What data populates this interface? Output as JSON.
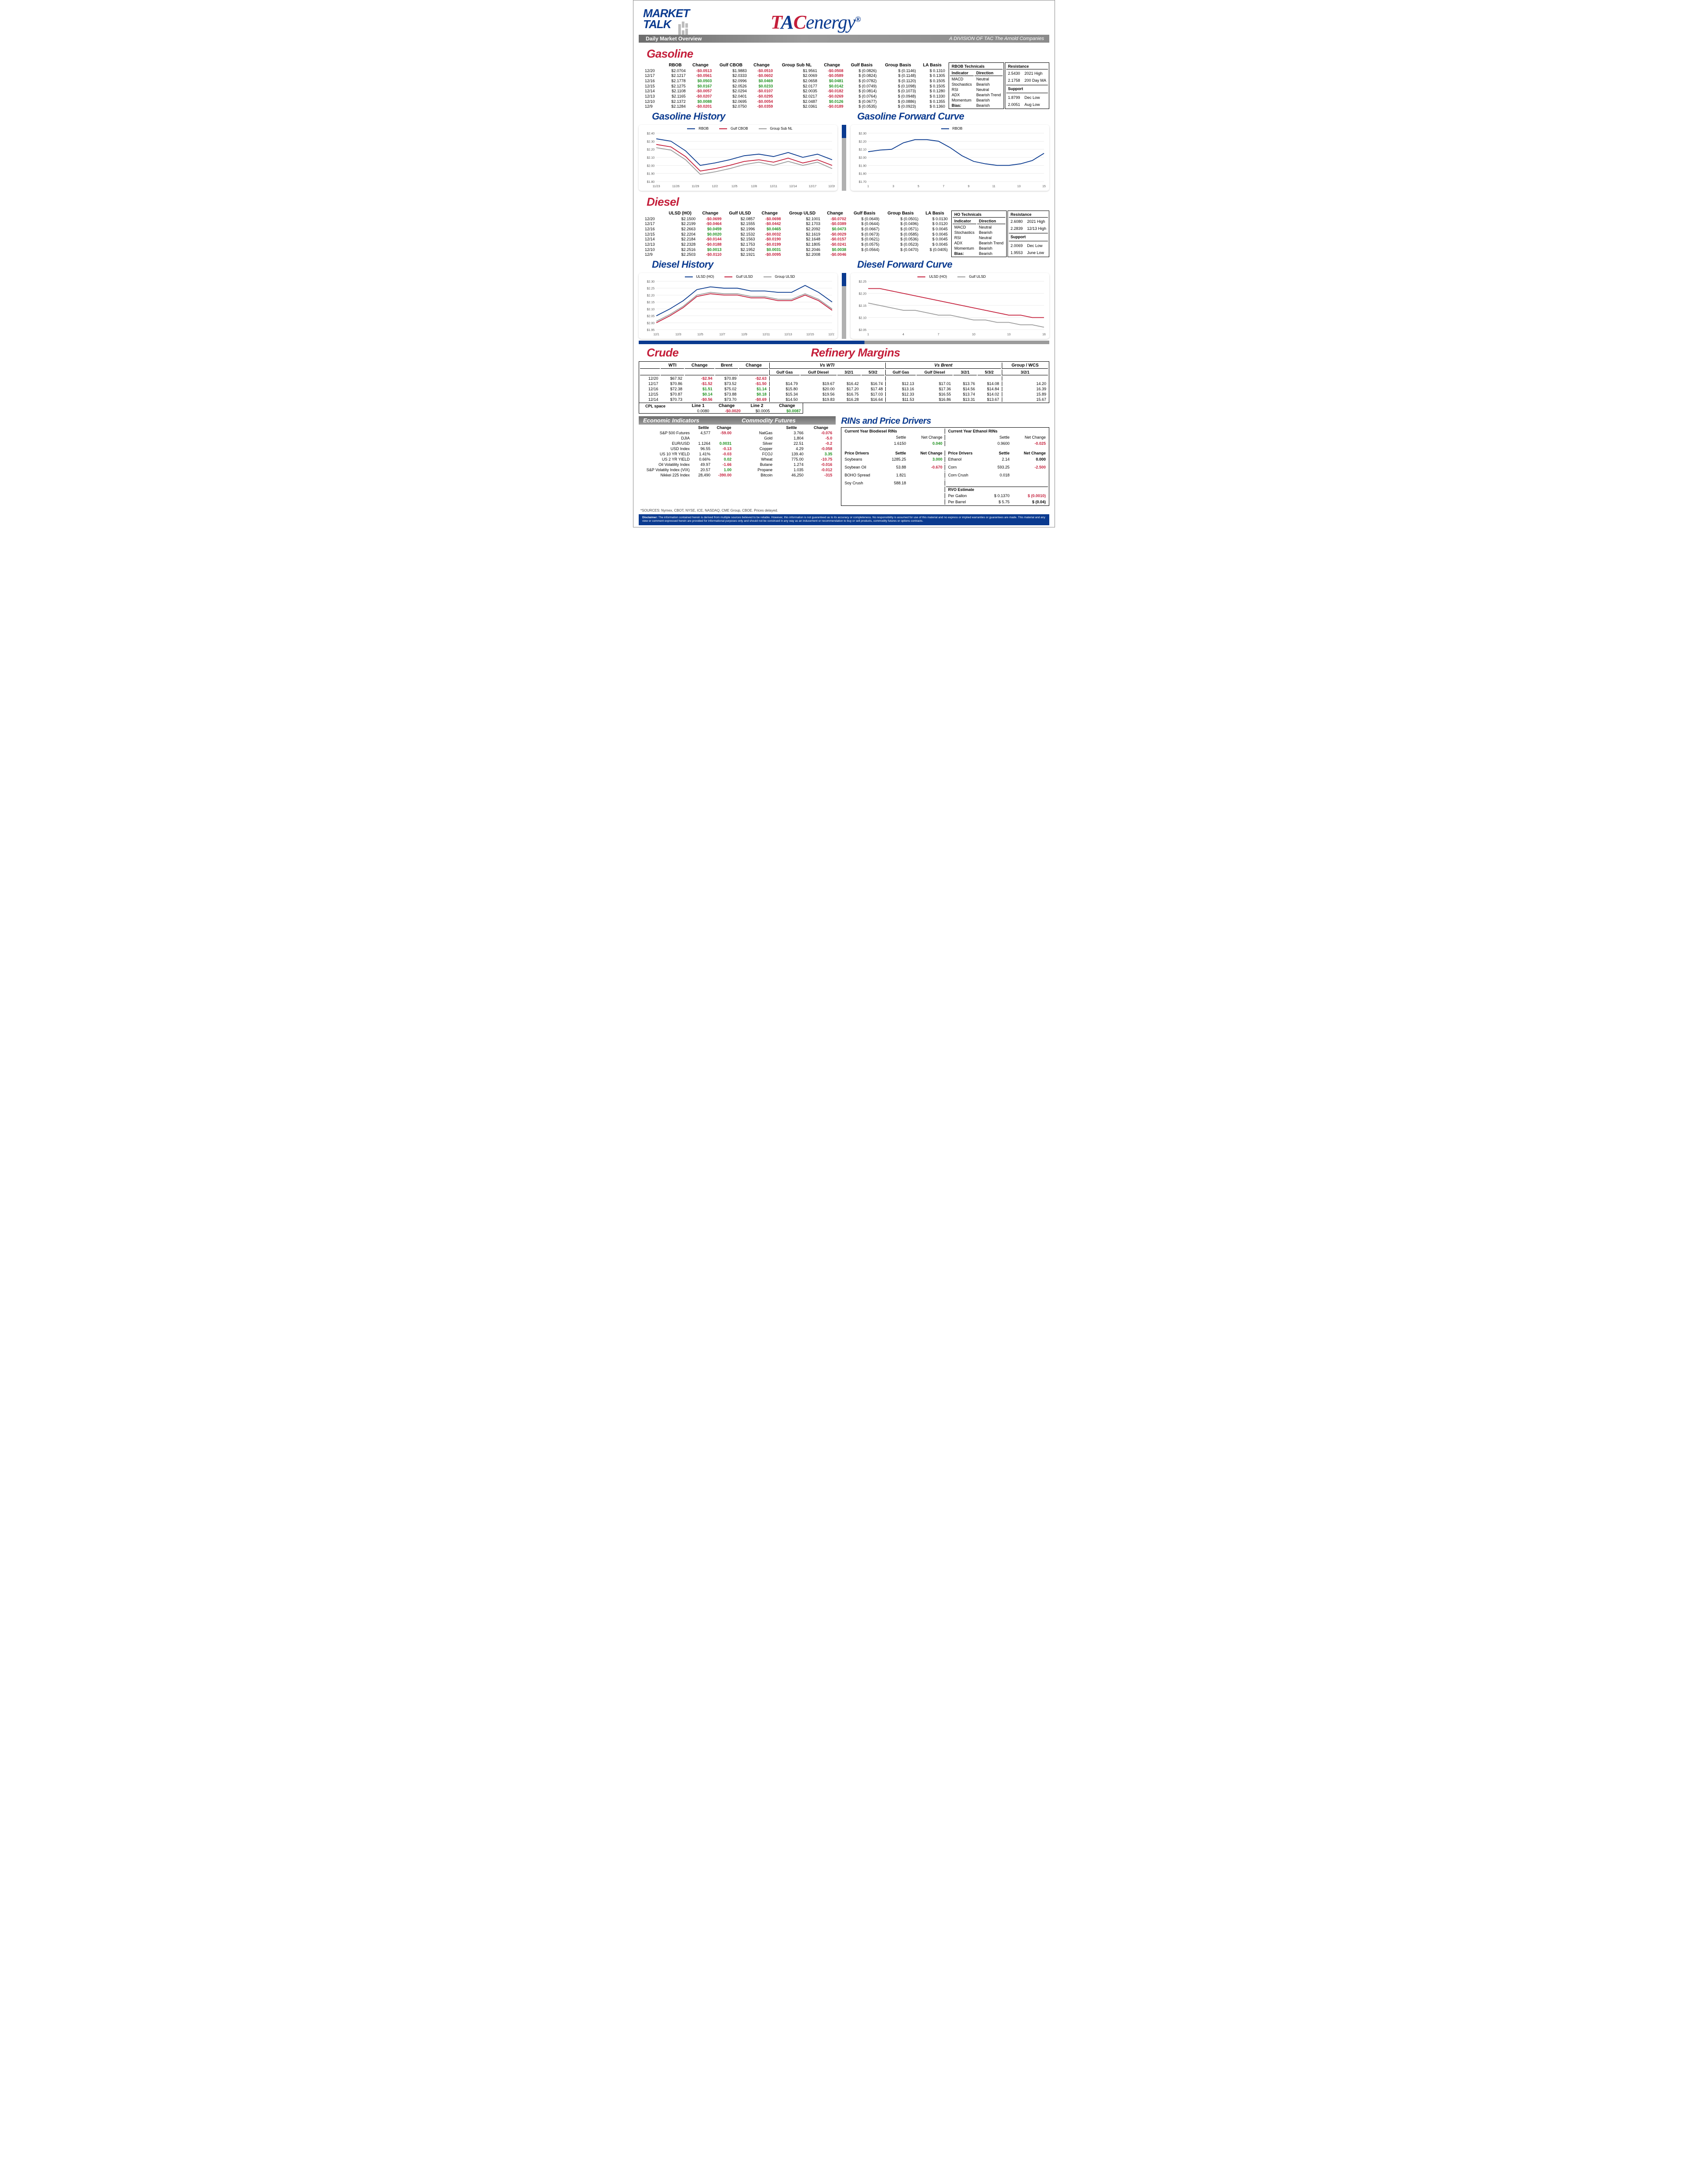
{
  "header": {
    "market": "MARKET",
    "talk": "TALK",
    "daily": "Daily Market Overview",
    "tac_t": "T",
    "tac_a": "A",
    "tac_c": "C",
    "tac_energy": "energy",
    "division": "A DIVISION OF TAC The Arnold Companies"
  },
  "colors": {
    "red": "#c41e3a",
    "blue": "#0a3a8f",
    "green": "#1a8f1a",
    "grey": "#9a9a9a",
    "grid": "#d9d9d9"
  },
  "gasoline": {
    "title": "Gasoline",
    "cols": [
      "RBOB",
      "Change",
      "Gulf CBOB",
      "Change",
      "Group Sub NL",
      "Change",
      "Gulf Basis",
      "Group Basis",
      "LA Basis"
    ],
    "rows": [
      {
        "date": "12/20",
        "v": [
          "$2.0704",
          "-$0.0513",
          "$1.9883",
          "-$0.0510",
          "$1.9561",
          "-$0.0508",
          "$ (0.0826)",
          "$    (0.1146)",
          "$   0.1310"
        ]
      },
      {
        "date": "12/17",
        "v": [
          "$2.1217",
          "-$0.0561",
          "$2.0333",
          "-$0.0602",
          "$2.0069",
          "-$0.0589",
          "$ (0.0824)",
          "$    (0.1148)",
          "$   0.1305"
        ]
      },
      {
        "date": "12/16",
        "v": [
          "$2.1778",
          "$0.0503",
          "$2.0996",
          "$0.0469",
          "$2.0658",
          "$0.0481",
          "$ (0.0782)",
          "$    (0.1120)",
          "$   0.1505"
        ]
      },
      {
        "date": "12/15",
        "v": [
          "$2.1275",
          "$0.0167",
          "$2.0526",
          "$0.0233",
          "$2.0177",
          "$0.0142",
          "$ (0.0749)",
          "$    (0.1098)",
          "$   0.1505"
        ]
      },
      {
        "date": "12/14",
        "v": [
          "$2.1108",
          "-$0.0057",
          "$2.0294",
          "-$0.0107",
          "$2.0035",
          "-$0.0182",
          "$ (0.0814)",
          "$    (0.1073)",
          "$   0.1280"
        ]
      },
      {
        "date": "12/13",
        "v": [
          "$2.1165",
          "-$0.0207",
          "$2.0401",
          "-$0.0295",
          "$2.0217",
          "-$0.0269",
          "$ (0.0764)",
          "$    (0.0948)",
          "$   0.1330"
        ]
      },
      {
        "date": "12/10",
        "v": [
          "$2.1372",
          "$0.0088",
          "$2.0695",
          "-$0.0054",
          "$2.0487",
          "$0.0126",
          "$ (0.0677)",
          "$    (0.0886)",
          "$   0.1355"
        ]
      },
      {
        "date": "12/9",
        "v": [
          "$2.1284",
          "-$0.0201",
          "$2.0750",
          "-$0.0359",
          "$2.0361",
          "-$0.0189",
          "$ (0.0535)",
          "$    (0.0923)",
          "$   0.1360"
        ]
      }
    ],
    "changeColors": [
      [
        "neg",
        "neg",
        "neg"
      ],
      [
        "neg",
        "neg",
        "neg"
      ],
      [
        "pos",
        "pos",
        "pos"
      ],
      [
        "pos",
        "pos",
        "pos"
      ],
      [
        "neg",
        "neg",
        "neg"
      ],
      [
        "neg",
        "neg",
        "neg"
      ],
      [
        "pos",
        "neg",
        "pos"
      ],
      [
        "neg",
        "neg",
        "neg"
      ]
    ],
    "tech": {
      "title": "RBOB Technicals",
      "cols": [
        "Indicator",
        "Direction"
      ],
      "rows": [
        [
          "MACD",
          "Neutral"
        ],
        [
          "Stochastics",
          "Bearish"
        ],
        [
          "RSI",
          "Neutral"
        ],
        [
          "ADX",
          "Bearish Trend"
        ],
        [
          "Momentum",
          "Bearish"
        ],
        [
          "Bias:",
          "Bearish"
        ]
      ]
    },
    "res": {
      "title": "Resistance",
      "rows": [
        [
          "2.5430",
          "2021 High"
        ],
        [
          "2.1758",
          "200 Day MA"
        ],
        [
          "1.8799",
          "Dec Low"
        ],
        [
          "2.0051",
          "Aug Low"
        ]
      ],
      "support": "Support"
    },
    "history": {
      "title": "Gasoline History",
      "legend": [
        "RBOB",
        "Gulf CBOB",
        "Group Sub NL"
      ],
      "legendColors": [
        "#0a3a8f",
        "#c41e3a",
        "#9a9a9a"
      ],
      "ylim": [
        1.8,
        2.4
      ],
      "yticks": [
        1.8,
        1.9,
        2.0,
        2.1,
        2.2,
        2.3,
        2.4
      ],
      "xlabels": [
        "11/23",
        "11/26",
        "11/29",
        "12/2",
        "12/5",
        "12/8",
        "12/11",
        "12/14",
        "12/17",
        "12/20"
      ],
      "series": [
        {
          "color": "#0a3a8f",
          "y": [
            2.33,
            2.3,
            2.18,
            2.0,
            2.03,
            2.07,
            2.12,
            2.14,
            2.11,
            2.16,
            2.1,
            2.14,
            2.07
          ]
        },
        {
          "color": "#c41e3a",
          "y": [
            2.26,
            2.23,
            2.11,
            1.93,
            1.96,
            2.0,
            2.05,
            2.07,
            2.04,
            2.09,
            2.03,
            2.07,
            2.0
          ]
        },
        {
          "color": "#9a9a9a",
          "y": [
            2.22,
            2.19,
            2.07,
            1.89,
            1.92,
            1.96,
            2.01,
            2.04,
            2.0,
            2.05,
            2.0,
            2.04,
            1.96
          ]
        }
      ]
    },
    "forward": {
      "title": "Gasoline Forward Curve",
      "legend": [
        "RBOB"
      ],
      "legendColors": [
        "#0a3a8f"
      ],
      "ylim": [
        1.7,
        2.3
      ],
      "yticks": [
        1.7,
        1.8,
        1.9,
        2.0,
        2.1,
        2.2,
        2.3
      ],
      "xlabels": [
        "1",
        "3",
        "5",
        "7",
        "9",
        "11",
        "13",
        "15"
      ],
      "series": [
        {
          "color": "#0a3a8f",
          "y": [
            2.07,
            2.09,
            2.1,
            2.18,
            2.22,
            2.22,
            2.2,
            2.12,
            2.02,
            1.95,
            1.92,
            1.9,
            1.9,
            1.92,
            1.96,
            2.05
          ]
        }
      ]
    }
  },
  "diesel": {
    "title": "Diesel",
    "cols": [
      "ULSD (HO)",
      "Change",
      "Gulf ULSD",
      "Change",
      "Group ULSD",
      "Change",
      "Gulf Basis",
      "Group Basis",
      "LA Basis"
    ],
    "rows": [
      {
        "date": "12/20",
        "v": [
          "$2.1500",
          "-$0.0699",
          "$2.0857",
          "-$0.0698",
          "$2.1001",
          "-$0.0702",
          "$ (0.0649)",
          "$    (0.0501)",
          "$   0.0130"
        ]
      },
      {
        "date": "12/17",
        "v": [
          "$2.2199",
          "-$0.0464",
          "$2.1555",
          "-$0.0442",
          "$2.1703",
          "-$0.0389",
          "$ (0.0644)",
          "$    (0.0496)",
          "$   0.0120"
        ]
      },
      {
        "date": "12/16",
        "v": [
          "$2.2663",
          "$0.0459",
          "$2.1996",
          "$0.0465",
          "$2.2092",
          "$0.0473",
          "$ (0.0667)",
          "$    (0.0571)",
          "$   0.0045"
        ]
      },
      {
        "date": "12/15",
        "v": [
          "$2.2204",
          "$0.0020",
          "$2.1532",
          "-$0.0032",
          "$2.1619",
          "-$0.0029",
          "$ (0.0673)",
          "$    (0.0585)",
          "$   0.0045"
        ]
      },
      {
        "date": "12/14",
        "v": [
          "$2.2184",
          "-$0.0144",
          "$2.1563",
          "-$0.0190",
          "$2.1648",
          "-$0.0157",
          "$ (0.0621)",
          "$    (0.0536)",
          "$   0.0045"
        ]
      },
      {
        "date": "12/13",
        "v": [
          "$2.2328",
          "-$0.0188",
          "$2.1753",
          "-$0.0199",
          "$2.1805",
          "-$0.0241",
          "$ (0.0575)",
          "$    (0.0523)",
          "$   0.0045"
        ]
      },
      {
        "date": "12/10",
        "v": [
          "$2.2516",
          "$0.0013",
          "$2.1952",
          "$0.0031",
          "$2.2046",
          "$0.0038",
          "$ (0.0564)",
          "$    (0.0470)",
          "$  (0.0405)"
        ]
      },
      {
        "date": "12/9",
        "v": [
          "$2.2503",
          "-$0.0110",
          "$2.1921",
          "-$0.0095",
          "$2.2008",
          "-$0.0046",
          "",
          "",
          ""
        ]
      }
    ],
    "changeColors": [
      [
        "neg",
        "neg",
        "neg"
      ],
      [
        "neg",
        "neg",
        "neg"
      ],
      [
        "pos",
        "pos",
        "pos"
      ],
      [
        "pos",
        "neg",
        "neg"
      ],
      [
        "neg",
        "neg",
        "neg"
      ],
      [
        "neg",
        "neg",
        "neg"
      ],
      [
        "pos",
        "pos",
        "pos"
      ],
      [
        "neg",
        "neg",
        "neg"
      ]
    ],
    "tech": {
      "title": "HO Technicals",
      "cols": [
        "Indicator",
        "Direction"
      ],
      "rows": [
        [
          "MACD",
          "Neutral"
        ],
        [
          "Stochastics",
          "Bearish"
        ],
        [
          "RSI",
          "Neutral"
        ],
        [
          "ADX",
          "Bearish Trend"
        ],
        [
          "Momentum",
          "Bearish"
        ],
        [
          "Bias:",
          "Bearish"
        ]
      ]
    },
    "res": {
      "title": "Resistance",
      "rows": [
        [
          "2.6080",
          "2021 High"
        ],
        [
          "2.2839",
          "12/13 High"
        ],
        [
          "2.0069",
          "Dec Low"
        ],
        [
          "1.9553",
          "June Low"
        ]
      ],
      "support": "Support"
    },
    "history": {
      "title": "Diesel History",
      "legend": [
        "ULSD (HO)",
        "Gulf ULSD",
        "Group ULSD"
      ],
      "legendColors": [
        "#0a3a8f",
        "#c41e3a",
        "#9a9a9a"
      ],
      "ylim": [
        1.95,
        2.3
      ],
      "yticks": [
        1.95,
        2.0,
        2.05,
        2.1,
        2.15,
        2.2,
        2.25,
        2.3
      ],
      "xlabels": [
        "12/1",
        "12/3",
        "12/5",
        "12/7",
        "12/9",
        "12/11",
        "12/13",
        "12/15",
        "12/17"
      ],
      "series": [
        {
          "color": "#0a3a8f",
          "y": [
            2.05,
            2.1,
            2.16,
            2.24,
            2.26,
            2.25,
            2.25,
            2.23,
            2.23,
            2.22,
            2.22,
            2.27,
            2.22,
            2.15
          ]
        },
        {
          "color": "#c41e3a",
          "y": [
            2.0,
            2.05,
            2.11,
            2.19,
            2.21,
            2.2,
            2.2,
            2.18,
            2.18,
            2.16,
            2.16,
            2.2,
            2.16,
            2.09
          ]
        },
        {
          "color": "#9a9a9a",
          "y": [
            2.01,
            2.06,
            2.12,
            2.2,
            2.22,
            2.21,
            2.21,
            2.19,
            2.19,
            2.17,
            2.17,
            2.21,
            2.17,
            2.1
          ]
        }
      ]
    },
    "forward": {
      "title": "Diesel Forward Curve",
      "legend": [
        "ULSD (HO)",
        "Gulf ULSD"
      ],
      "legendColors": [
        "#c41e3a",
        "#9a9a9a"
      ],
      "ylim": [
        2.05,
        2.25
      ],
      "yticks": [
        2.05,
        2.1,
        2.15,
        2.2,
        2.25
      ],
      "xlabels": [
        "1",
        "4",
        "7",
        "10",
        "13",
        "16"
      ],
      "series": [
        {
          "color": "#c41e3a",
          "y": [
            2.22,
            2.22,
            2.21,
            2.2,
            2.19,
            2.18,
            2.17,
            2.16,
            2.15,
            2.14,
            2.13,
            2.12,
            2.11,
            2.11,
            2.1,
            2.1
          ]
        },
        {
          "color": "#9a9a9a",
          "y": [
            2.16,
            2.15,
            2.14,
            2.13,
            2.13,
            2.12,
            2.11,
            2.11,
            2.1,
            2.09,
            2.09,
            2.08,
            2.08,
            2.07,
            2.07,
            2.06
          ]
        }
      ]
    }
  },
  "crude": {
    "title": "Crude",
    "refTitle": "Refinery Margins",
    "wtiCol": "WTI",
    "wtiChg": "Change",
    "brentCol": "Brent",
    "brentChg": "Change",
    "vsWti": "Vs WTI",
    "vsBrent": "Vs Brent",
    "groupWcs": "Group / WCS",
    "subCols": [
      "Gulf Gas",
      "Gulf Diesel",
      "3/2/1",
      "5/3/2"
    ],
    "rows": [
      {
        "date": "12/20",
        "wti": "$67.92",
        "wtiC": "-$2.94",
        "brent": "$70.89",
        "brentC": "-$2.63",
        "vw": [
          "",
          "",
          "",
          ""
        ],
        "vb": [
          "",
          "",
          "",
          ""
        ],
        "gw": ""
      },
      {
        "date": "12/17",
        "wti": "$70.86",
        "wtiC": "-$1.52",
        "brent": "$73.52",
        "brentC": "-$1.50",
        "vw": [
          "$14.79",
          "$19.67",
          "$16.42",
          "$16.74"
        ],
        "vb": [
          "$12.13",
          "$17.01",
          "$13.76",
          "$14.08"
        ],
        "gw": "14.20"
      },
      {
        "date": "12/16",
        "wti": "$72.38",
        "wtiC": "$1.51",
        "brent": "$75.02",
        "brentC": "$1.14",
        "vw": [
          "$15.80",
          "$20.00",
          "$17.20",
          "$17.48"
        ],
        "vb": [
          "$13.16",
          "$17.36",
          "$14.56",
          "$14.84"
        ],
        "gw": "16.39"
      },
      {
        "date": "12/15",
        "wti": "$70.87",
        "wtiC": "$0.14",
        "brent": "$73.88",
        "brentC": "$0.18",
        "vw": [
          "$15.34",
          "$19.56",
          "$16.75",
          "$17.03"
        ],
        "vb": [
          "$12.33",
          "$16.55",
          "$13.74",
          "$14.02"
        ],
        "gw": "15.89"
      },
      {
        "date": "12/14",
        "wti": "$70.73",
        "wtiC": "-$0.56",
        "brent": "$73.70",
        "brentC": "-$0.69",
        "vw": [
          "$14.50",
          "$19.83",
          "$16.28",
          "$16.64"
        ],
        "vb": [
          "$11.53",
          "$16.86",
          "$13.31",
          "$13.67"
        ],
        "gw": "15.67"
      }
    ],
    "crudeColors": [
      [
        "neg",
        "neg"
      ],
      [
        "neg",
        "neg"
      ],
      [
        "pos",
        "pos"
      ],
      [
        "pos",
        "pos"
      ],
      [
        "neg",
        "neg"
      ]
    ],
    "cpl": {
      "label": "CPL space",
      "l1": "Line 1",
      "l1v": "0.0080",
      "l1c": "-$0.0020",
      "l2": "Line 2",
      "l2v": "$0.0005",
      "l2c": "$0.0087"
    }
  },
  "econ": {
    "title": "Economic Indicators",
    "comTitle": "Commodity Futures",
    "left": [
      [
        "S&P 500 Futures",
        "4,577",
        "-59.00",
        "neg"
      ],
      [
        "DJIA",
        "",
        "",
        ""
      ],
      [
        "EUR/USD",
        "1.1264",
        "0.0031",
        "pos"
      ],
      [
        "USD Index",
        "96.55",
        "-0.13",
        "neg"
      ],
      [
        "US 10 YR YIELD",
        "1.41%",
        "-0.03",
        "neg"
      ],
      [
        "US 2 YR YIELD",
        "0.66%",
        "0.02",
        "pos"
      ],
      [
        "Oil Volatility Index",
        "49.97",
        "-1.66",
        "neg"
      ],
      [
        "S&P Volatiliy Index (VIX)",
        "20.57",
        "1.00",
        "pos"
      ],
      [
        "Nikkei 225 Index",
        "28,490",
        "-390.00",
        "neg"
      ]
    ],
    "leftHead": [
      "",
      "Settle",
      "Change"
    ],
    "right": [
      [
        "NatGas",
        "3.766",
        "-0.076",
        "neg"
      ],
      [
        "Gold",
        "1,804",
        "-5.0",
        "neg"
      ],
      [
        "Silver",
        "22.51",
        "-0.2",
        "neg"
      ],
      [
        "Copper",
        "4.29",
        "-0.058",
        "neg"
      ],
      [
        "FCOJ",
        "139.40",
        "3.35",
        "pos"
      ],
      [
        "Wheat",
        "775.00",
        "-10.75",
        "neg"
      ],
      [
        "Butane",
        "1.274",
        "-0.016",
        "neg"
      ],
      [
        "Propane",
        "1.035",
        "-0.012",
        "neg"
      ],
      [
        "Bitcoin",
        "46,250",
        "-315",
        "neg"
      ]
    ],
    "rightHead": [
      "",
      "Settle",
      "Change"
    ]
  },
  "rins": {
    "title": "RINs and Price Drivers",
    "bio": {
      "title": "Current Year Biodiesel RINs",
      "settle": "1.6150",
      "net": "0.040",
      "netCls": "pos"
    },
    "eth": {
      "title": "Current Year Ethanol RINs",
      "settle": "0.9600",
      "net": "-0.025",
      "netCls": "neg"
    },
    "head": [
      "",
      "Settle",
      "Net Change"
    ],
    "left": [
      [
        "Soybeans",
        "1285.25",
        "3.000",
        "pos"
      ],
      [
        "",
        "",
        "",
        ""
      ],
      [
        "Soybean Oil",
        "53.88",
        "-0.670",
        "neg"
      ],
      [
        "",
        "",
        "",
        ""
      ],
      [
        "BOHO Spread",
        "1.821",
        "",
        ""
      ],
      [
        "",
        "",
        "",
        ""
      ],
      [
        "Soy Crush",
        "588.18",
        "",
        ""
      ]
    ],
    "right": [
      [
        "Ethanol",
        "2.14",
        "0.000",
        "black"
      ],
      [
        "",
        "",
        "",
        ""
      ],
      [
        "Corn",
        "593.25",
        "-2.500",
        "neg"
      ],
      [
        "",
        "",
        "",
        ""
      ],
      [
        "Corn Crush",
        "0.018",
        "",
        ""
      ]
    ],
    "pdLabel": "Price Drivers",
    "rvo": {
      "title": "RVO Estimate",
      "rows": [
        [
          "Per Gallon",
          "$   0.1370",
          "$       (0.0010)",
          "neg"
        ],
        [
          "Per Barrel",
          "$      5.75",
          "$          (0.04)",
          "black"
        ]
      ]
    }
  },
  "sources": "*SOURCES: Nymex, CBOT, NYSE, ICE, NASDAQ, CME Group, CBOE.   Prices delayed.",
  "disclaimer": {
    "label": "Disclaimer:",
    "text": " The information contained herein is derived from multiple sources believed to be reliable. However, this information is not guaranteed as to its accuracy or completeness. No responsibility is assumed for use of this material and no express or implied warranties or guarantees are made. This material and any view or comment expressed herein are provided for informational purposes only and should not be construed in any way as an inducement or recommendation to buy or sell products, commodity futures or options contracts."
  }
}
